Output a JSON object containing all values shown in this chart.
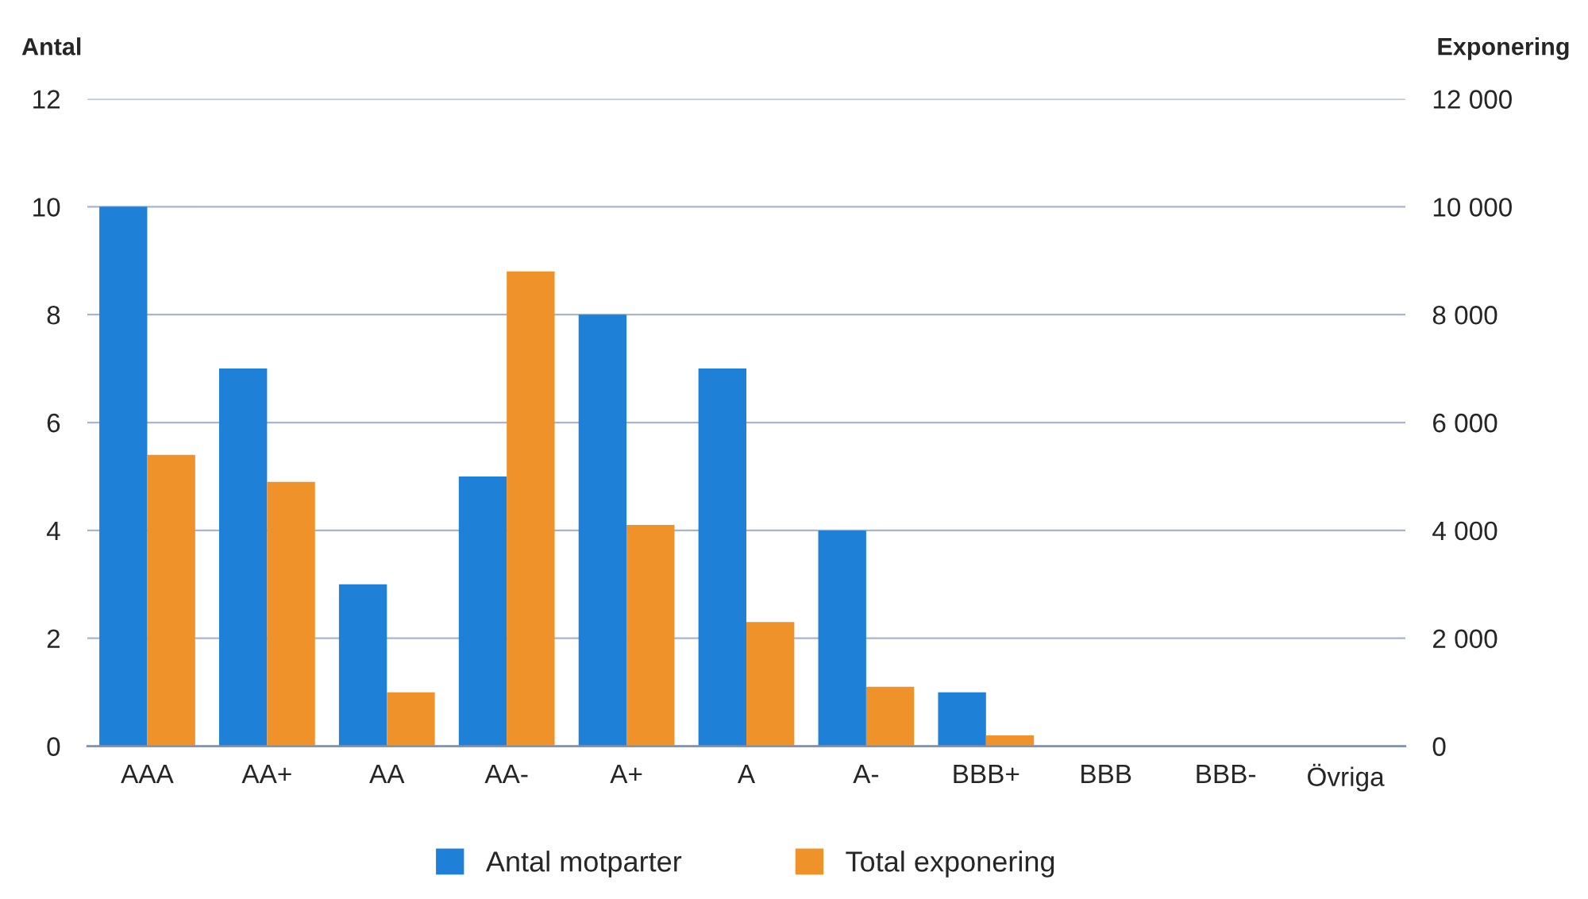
{
  "chart_data": {
    "type": "bar",
    "ylabel": "Antal",
    "y2label": "Exponering",
    "categories": [
      "AAA",
      "AA+",
      "AA",
      "AA-",
      "A+",
      "A",
      "A-",
      "BBB+",
      "BBB",
      "BBB-",
      "Övriga"
    ],
    "series": [
      {
        "name": "Antal motparter",
        "color": "#1f80d8",
        "values": [
          10,
          7,
          3,
          5,
          8,
          7,
          4,
          1,
          0,
          0,
          0
        ]
      },
      {
        "name": "Total exponering",
        "color": "#f0922a",
        "axis": "y2",
        "values": [
          5400,
          4900,
          1000,
          8800,
          4100,
          2300,
          1100,
          200,
          0,
          0,
          0
        ]
      }
    ],
    "ylim": [
      0,
      12
    ],
    "yticks": [
      0,
      2,
      4,
      6,
      8,
      10,
      12
    ],
    "y2lim": [
      0,
      12000
    ],
    "y2ticks": [
      {
        "value": 0,
        "label": "0"
      },
      {
        "value": 2000,
        "label": "2 000"
      },
      {
        "value": 4000,
        "label": "4 000"
      },
      {
        "value": 6000,
        "label": "6 000"
      },
      {
        "value": 8000,
        "label": "8 000"
      },
      {
        "value": 10000,
        "label": "10 000"
      },
      {
        "value": 12000,
        "label": "12 000"
      }
    ],
    "grid": "y",
    "legend": "bottom"
  }
}
